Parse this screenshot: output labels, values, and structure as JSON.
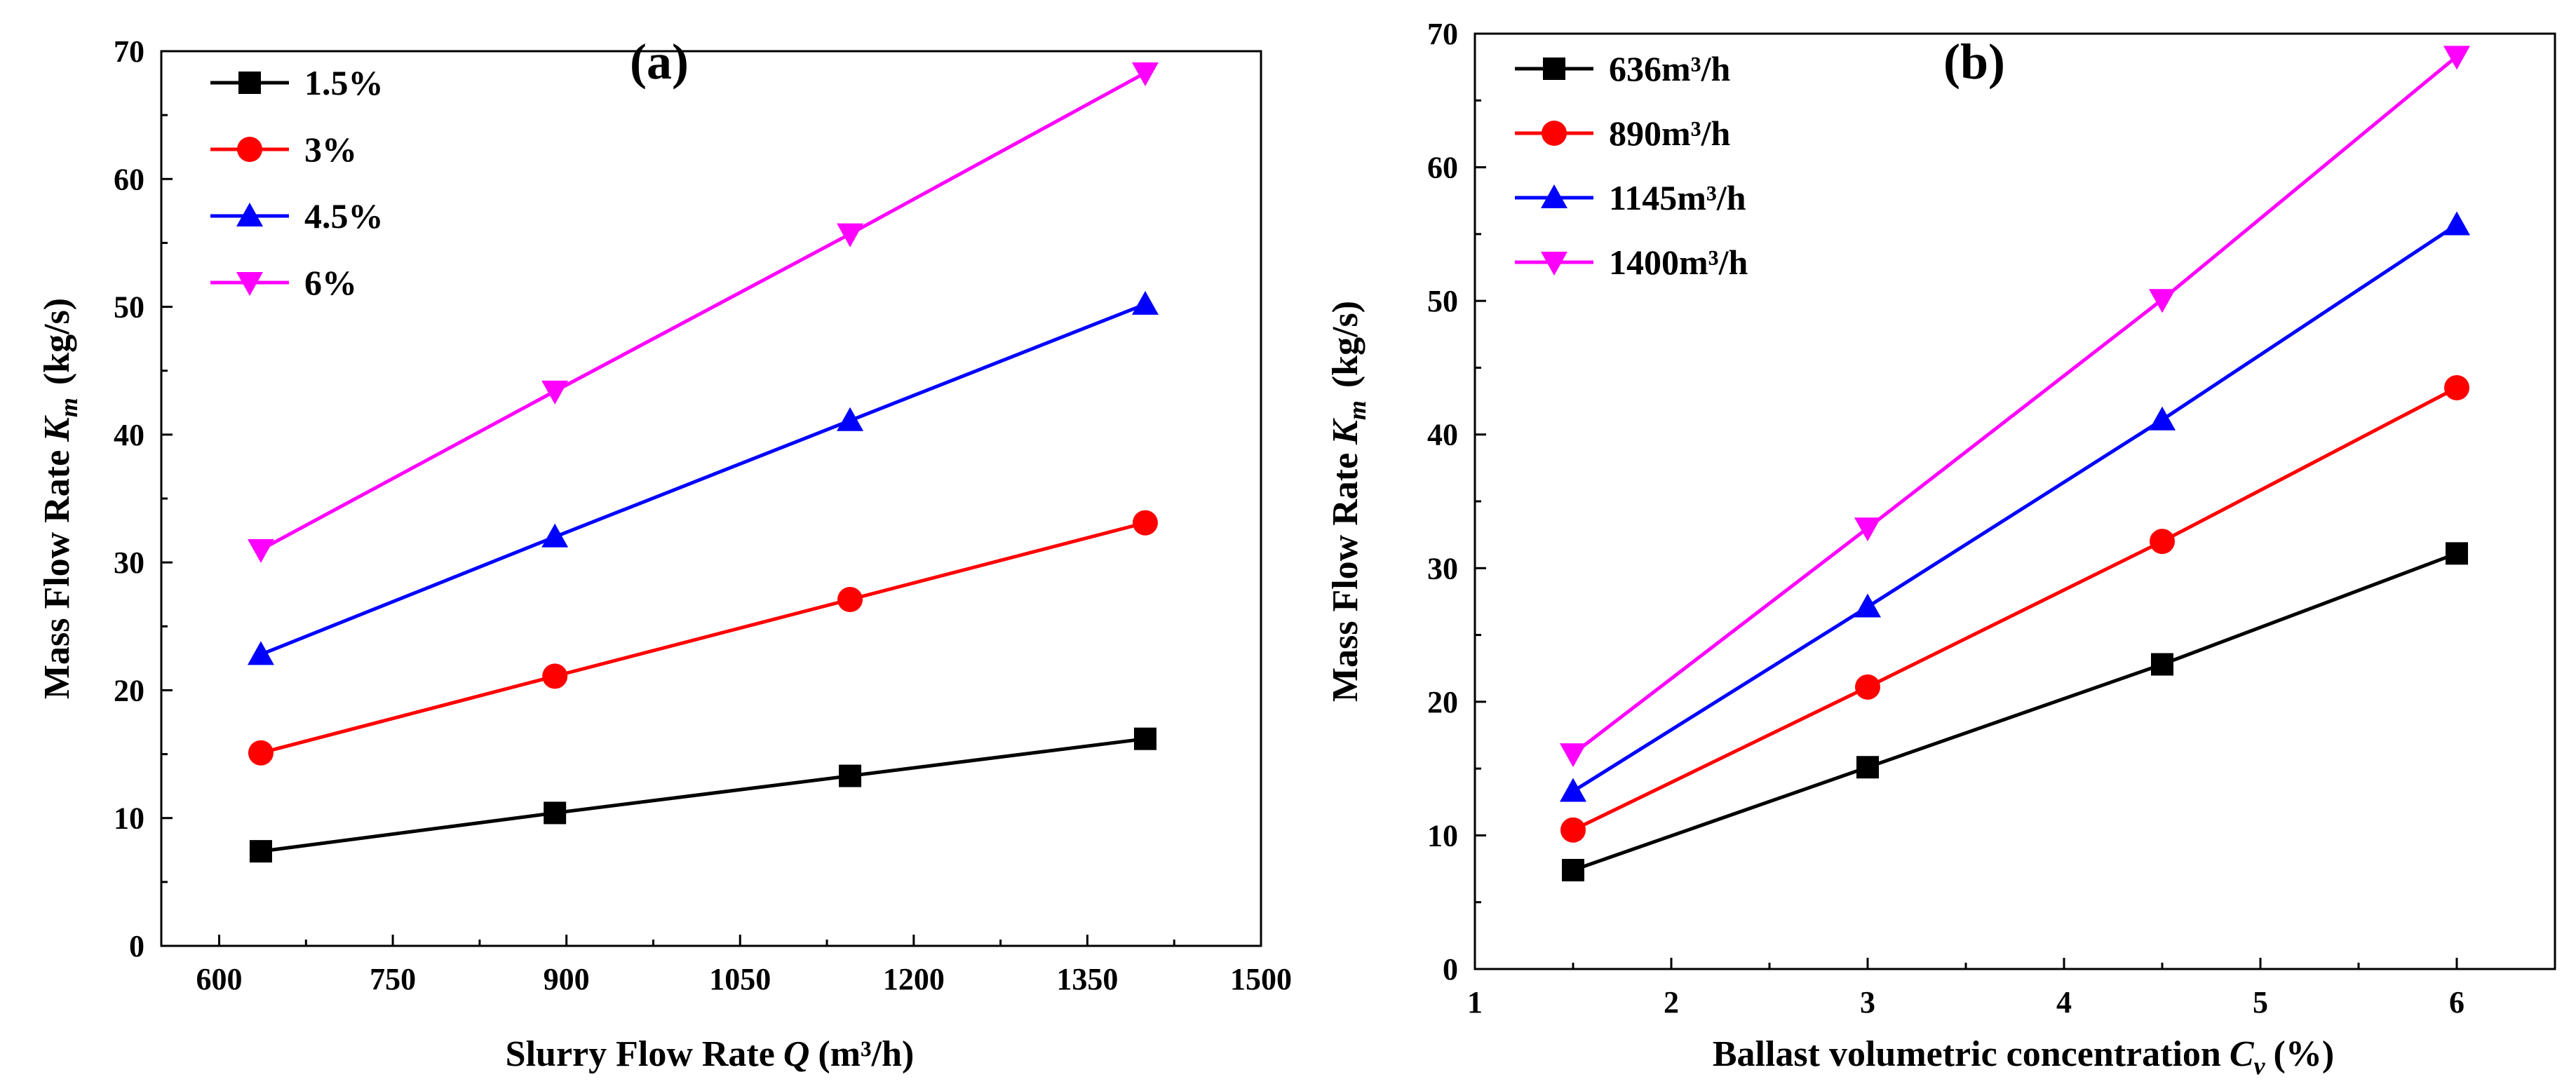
{
  "chart_data": [
    {
      "type": "line",
      "panel_label": "(a)",
      "title": "",
      "xlabel": "Slurry Flow Rate",
      "xlabel_var": "Q",
      "xlabel_unit": "(m³/h)",
      "ylabel": "Mass Flow Rate",
      "ylabel_var": "K",
      "ylabel_sub": "m",
      "ylabel_unit": "(kg/s)",
      "xlim": [
        550,
        1500
      ],
      "ylim": [
        0,
        70
      ],
      "xticks": [
        600,
        750,
        900,
        1050,
        1200,
        1350,
        1500
      ],
      "yticks": [
        0,
        10,
        20,
        30,
        40,
        50,
        60,
        70
      ],
      "legend_position": "top-left",
      "x": [
        636,
        890,
        1145,
        1400
      ],
      "series": [
        {
          "name": "1.5%",
          "color": "#000000",
          "marker": "square",
          "values": [
            7.4,
            10.4,
            13.3,
            16.2
          ]
        },
        {
          "name": "3%",
          "color": "#ff0000",
          "marker": "circle",
          "values": [
            15.1,
            21.1,
            27.1,
            33.1
          ]
        },
        {
          "name": "4.5%",
          "color": "#0000ff",
          "marker": "triangle-up",
          "values": [
            22.8,
            32.0,
            41.1,
            50.2
          ]
        },
        {
          "name": "6%",
          "color": "#ff00ff",
          "marker": "triangle-down",
          "values": [
            31.0,
            43.4,
            55.7,
            68.3
          ]
        }
      ]
    },
    {
      "type": "line",
      "panel_label": "(b)",
      "title": "",
      "xlabel": "Ballast volumetric concentration",
      "xlabel_var": "C",
      "xlabel_sub": "v",
      "xlabel_unit": "(%)",
      "ylabel": "Mass Flow Rate",
      "ylabel_var": "K",
      "ylabel_sub": "m",
      "ylabel_unit": "(kg/s)",
      "xlim": [
        1,
        6.5
      ],
      "ylim": [
        0,
        70
      ],
      "xticks": [
        1,
        2,
        3,
        4,
        5,
        6
      ],
      "yticks": [
        0,
        10,
        20,
        30,
        40,
        50,
        60,
        70
      ],
      "legend_position": "top-left",
      "x": [
        1.5,
        3,
        4.5,
        6
      ],
      "series": [
        {
          "name": "636m³/h",
          "color": "#000000",
          "marker": "square",
          "values": [
            7.4,
            15.1,
            22.8,
            31.1
          ]
        },
        {
          "name": "890m³/h",
          "color": "#ff0000",
          "marker": "circle",
          "values": [
            10.4,
            21.1,
            32.0,
            43.5
          ]
        },
        {
          "name": "1145m³/h",
          "color": "#0000ff",
          "marker": "triangle-up",
          "values": [
            13.3,
            27.1,
            41.1,
            55.7
          ]
        },
        {
          "name": "1400m³/h",
          "color": "#ff00ff",
          "marker": "triangle-down",
          "values": [
            16.1,
            33.0,
            50.1,
            68.3
          ]
        }
      ]
    }
  ]
}
